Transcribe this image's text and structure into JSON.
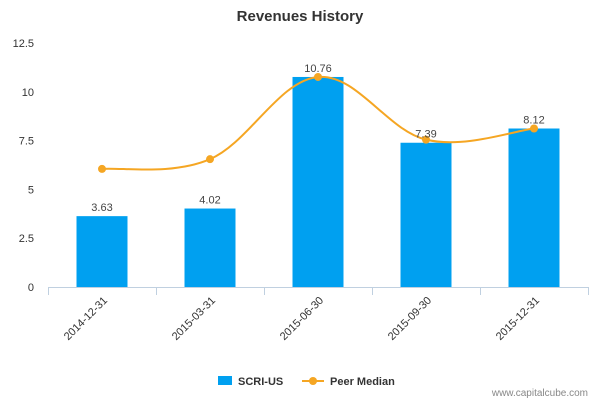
{
  "chart_data": {
    "type": "bar",
    "title": "Revenues History",
    "categories": [
      "2014-12-31",
      "2015-03-31",
      "2015-06-30",
      "2015-09-30",
      "2015-12-31"
    ],
    "series": [
      {
        "name": "SCRI-US",
        "type": "bar",
        "values": [
          3.63,
          4.02,
          10.76,
          7.39,
          8.12
        ],
        "labels": [
          "3.63",
          "4.02",
          "10.76",
          "7.39",
          "8.12"
        ]
      },
      {
        "name": "Peer Median",
        "type": "line",
        "values": [
          6.05,
          6.55,
          10.76,
          7.55,
          8.12
        ]
      }
    ],
    "yticks": [
      "0",
      "2.5",
      "5",
      "7.5",
      "10",
      "12.5"
    ],
    "ylim": [
      0,
      12.5
    ],
    "grid": false,
    "legend": "bottom",
    "colors": {
      "bar": "#00a0f0",
      "line": "#f5a623"
    }
  },
  "source": "www.capitalcube.com"
}
